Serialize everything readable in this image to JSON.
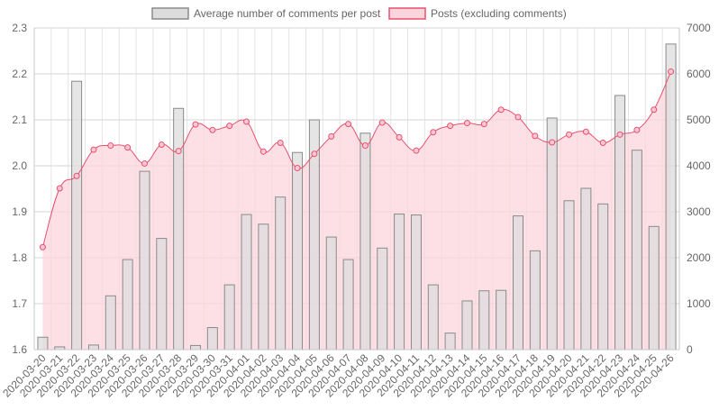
{
  "chart_data": {
    "type": "bar",
    "categories": [
      "2020-03-20",
      "2020-03-21",
      "2020-03-22",
      "2020-03-23",
      "2020-03-24",
      "2020-03-25",
      "2020-03-26",
      "2020-03-27",
      "2020-03-28",
      "2020-03-29",
      "2020-03-30",
      "2020-03-31",
      "2020-04-01",
      "2020-04-02",
      "2020-04-03",
      "2020-04-04",
      "2020-04-05",
      "2020-04-06",
      "2020-04-07",
      "2020-04-08",
      "2020-04-09",
      "2020-04-10",
      "2020-04-11",
      "2020-04-12",
      "2020-04-13",
      "2020-04-14",
      "2020-04-15",
      "2020-04-16",
      "2020-04-17",
      "2020-04-18",
      "2020-04-19",
      "2020-04-20",
      "2020-04-21",
      "2020-04-22",
      "2020-04-23",
      "2020-04-24",
      "2020-04-25",
      "2020-04-26"
    ],
    "series": [
      {
        "name": "Average number of comments per post",
        "type": "bar",
        "axis": "left",
        "color": "#a0a0a0",
        "fill": "#dcdcdc",
        "values": [
          1.627,
          1.606,
          2.184,
          1.61,
          1.717,
          1.796,
          1.988,
          1.842,
          2.125,
          1.609,
          1.648,
          1.741,
          1.894,
          1.873,
          1.932,
          2.029,
          2.1,
          1.845,
          1.796,
          2.071,
          1.821,
          1.895,
          1.893,
          1.741,
          1.636,
          1.706,
          1.728,
          1.729,
          1.891,
          1.815,
          2.104,
          1.924,
          1.951,
          1.917,
          2.153,
          2.034,
          1.868,
          2.265
        ]
      },
      {
        "name": "Posts (excluding comments)",
        "type": "area",
        "axis": "right",
        "color": "#e8506e",
        "fill": "#fcd5dc",
        "values": [
          2230,
          3510,
          3780,
          4350,
          4440,
          4400,
          4050,
          4460,
          4320,
          4900,
          4780,
          4870,
          4960,
          4310,
          4500,
          3950,
          4260,
          4640,
          4910,
          4440,
          4940,
          4620,
          4330,
          4730,
          4870,
          4930,
          4910,
          5220,
          5060,
          4650,
          4510,
          4680,
          4740,
          4500,
          4680,
          4780,
          5220,
          6050
        ]
      }
    ],
    "yleft": {
      "min": 1.6,
      "max": 2.3,
      "ticks": [
        "1.6",
        "1.7",
        "1.8",
        "1.9",
        "2.0",
        "2.1",
        "2.2",
        "2.3"
      ]
    },
    "yright": {
      "min": 0,
      "max": 7000,
      "ticks": [
        "0",
        "1000",
        "2000",
        "3000",
        "4000",
        "5000",
        "6000",
        "7000"
      ]
    },
    "grid": true,
    "legend_position": "top-center"
  }
}
